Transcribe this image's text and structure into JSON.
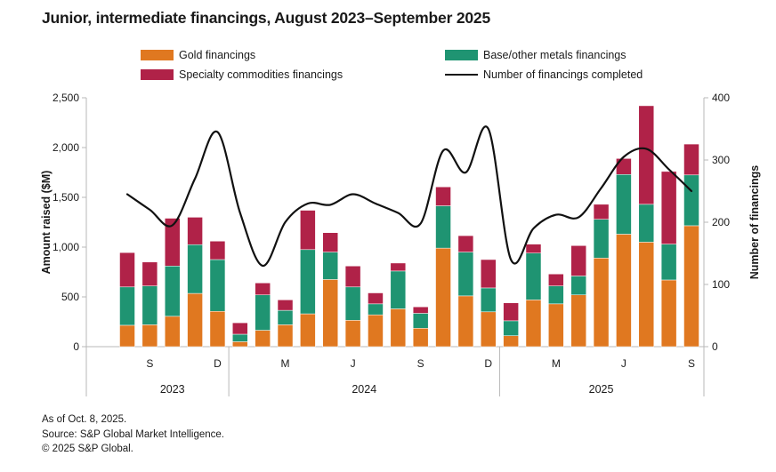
{
  "title": "Junior, intermediate financings, August 2023–September 2025",
  "legend": {
    "items": [
      {
        "label": "Gold financings",
        "color": "#E07820",
        "kind": "swatch"
      },
      {
        "label": "Specialty commodities financings",
        "color": "#B02248",
        "kind": "swatch"
      },
      {
        "label": "Base/other metals financings",
        "color": "#1F9472",
        "kind": "swatch"
      },
      {
        "label": "Number of financings completed",
        "color": "#111111",
        "kind": "line"
      }
    ]
  },
  "footer": {
    "line1": "As of Oct. 8, 2025.",
    "line2": "Source: S&P Global Market Intelligence.",
    "line3": "© 2025 S&P Global."
  },
  "chart_data": {
    "type": "bar",
    "subtype": "stacked-bars-with-line-overlay",
    "categories": [
      "Aug 2023",
      "Sep 2023",
      "Oct 2023",
      "Nov 2023",
      "Dec 2023",
      "Jan 2024",
      "Feb 2024",
      "Mar 2024",
      "Apr 2024",
      "May 2024",
      "Jun 2024",
      "Jul 2024",
      "Aug 2024",
      "Sep 2024",
      "Oct 2024",
      "Nov 2024",
      "Dec 2024",
      "Jan 2025",
      "Feb 2025",
      "Mar 2025",
      "Apr 2025",
      "May 2025",
      "Jun 2025",
      "Jul 2025",
      "Aug 2025",
      "Sep 2025"
    ],
    "series": [
      {
        "name": "Gold financings",
        "color": "#E07820",
        "values": [
          215,
          220,
          305,
          535,
          355,
          50,
          165,
          220,
          330,
          675,
          265,
          320,
          380,
          185,
          990,
          510,
          350,
          110,
          470,
          430,
          520,
          890,
          1130,
          1050,
          670,
          1215
        ]
      },
      {
        "name": "Base/other metals financings",
        "color": "#1F9472",
        "values": [
          385,
          390,
          505,
          490,
          520,
          75,
          355,
          145,
          645,
          275,
          335,
          110,
          380,
          150,
          425,
          440,
          240,
          150,
          470,
          180,
          190,
          390,
          600,
          380,
          360,
          510
        ]
      },
      {
        "name": "Specialty commodities financings",
        "color": "#B02248",
        "values": [
          345,
          240,
          480,
          275,
          185,
          115,
          120,
          105,
          395,
          195,
          210,
          110,
          80,
          65,
          190,
          165,
          285,
          180,
          90,
          120,
          305,
          150,
          160,
          990,
          730,
          310
        ]
      }
    ],
    "line_series": {
      "name": "Number of financings completed",
      "color": "#111111",
      "axis": "right",
      "values": [
        245,
        220,
        195,
        270,
        345,
        215,
        130,
        200,
        230,
        228,
        245,
        230,
        215,
        198,
        315,
        280,
        350,
        140,
        190,
        212,
        208,
        255,
        305,
        318,
        285,
        250
      ]
    },
    "left_axis": {
      "label": "Amount raised ($M)",
      "min": 0,
      "max": 2500,
      "tick_values": [
        0,
        500,
        1000,
        1500,
        2000,
        2500
      ],
      "tick_labels": [
        "0",
        "500",
        "1,000",
        "1,500",
        "2,000",
        "2,500"
      ]
    },
    "right_axis": {
      "label": "Number of financings",
      "min": 0,
      "max": 400,
      "tick_values": [
        0,
        100,
        200,
        300,
        400
      ],
      "tick_labels": [
        "0",
        "100",
        "200",
        "300",
        "400"
      ]
    },
    "x_tick_labels": [
      {
        "index": 1,
        "label": "S"
      },
      {
        "index": 4,
        "label": "D"
      },
      {
        "index": 7,
        "label": "M"
      },
      {
        "index": 10,
        "label": "J"
      },
      {
        "index": 13,
        "label": "S"
      },
      {
        "index": 16,
        "label": "D"
      },
      {
        "index": 19,
        "label": "M"
      },
      {
        "index": 22,
        "label": "J"
      },
      {
        "index": 25,
        "label": "S"
      }
    ],
    "year_groups": [
      {
        "label": "2023",
        "start": 0,
        "end": 4
      },
      {
        "label": "2024",
        "start": 5,
        "end": 16
      },
      {
        "label": "2025",
        "start": 17,
        "end": 25
      }
    ],
    "grid": "off",
    "legend_position": "top"
  }
}
